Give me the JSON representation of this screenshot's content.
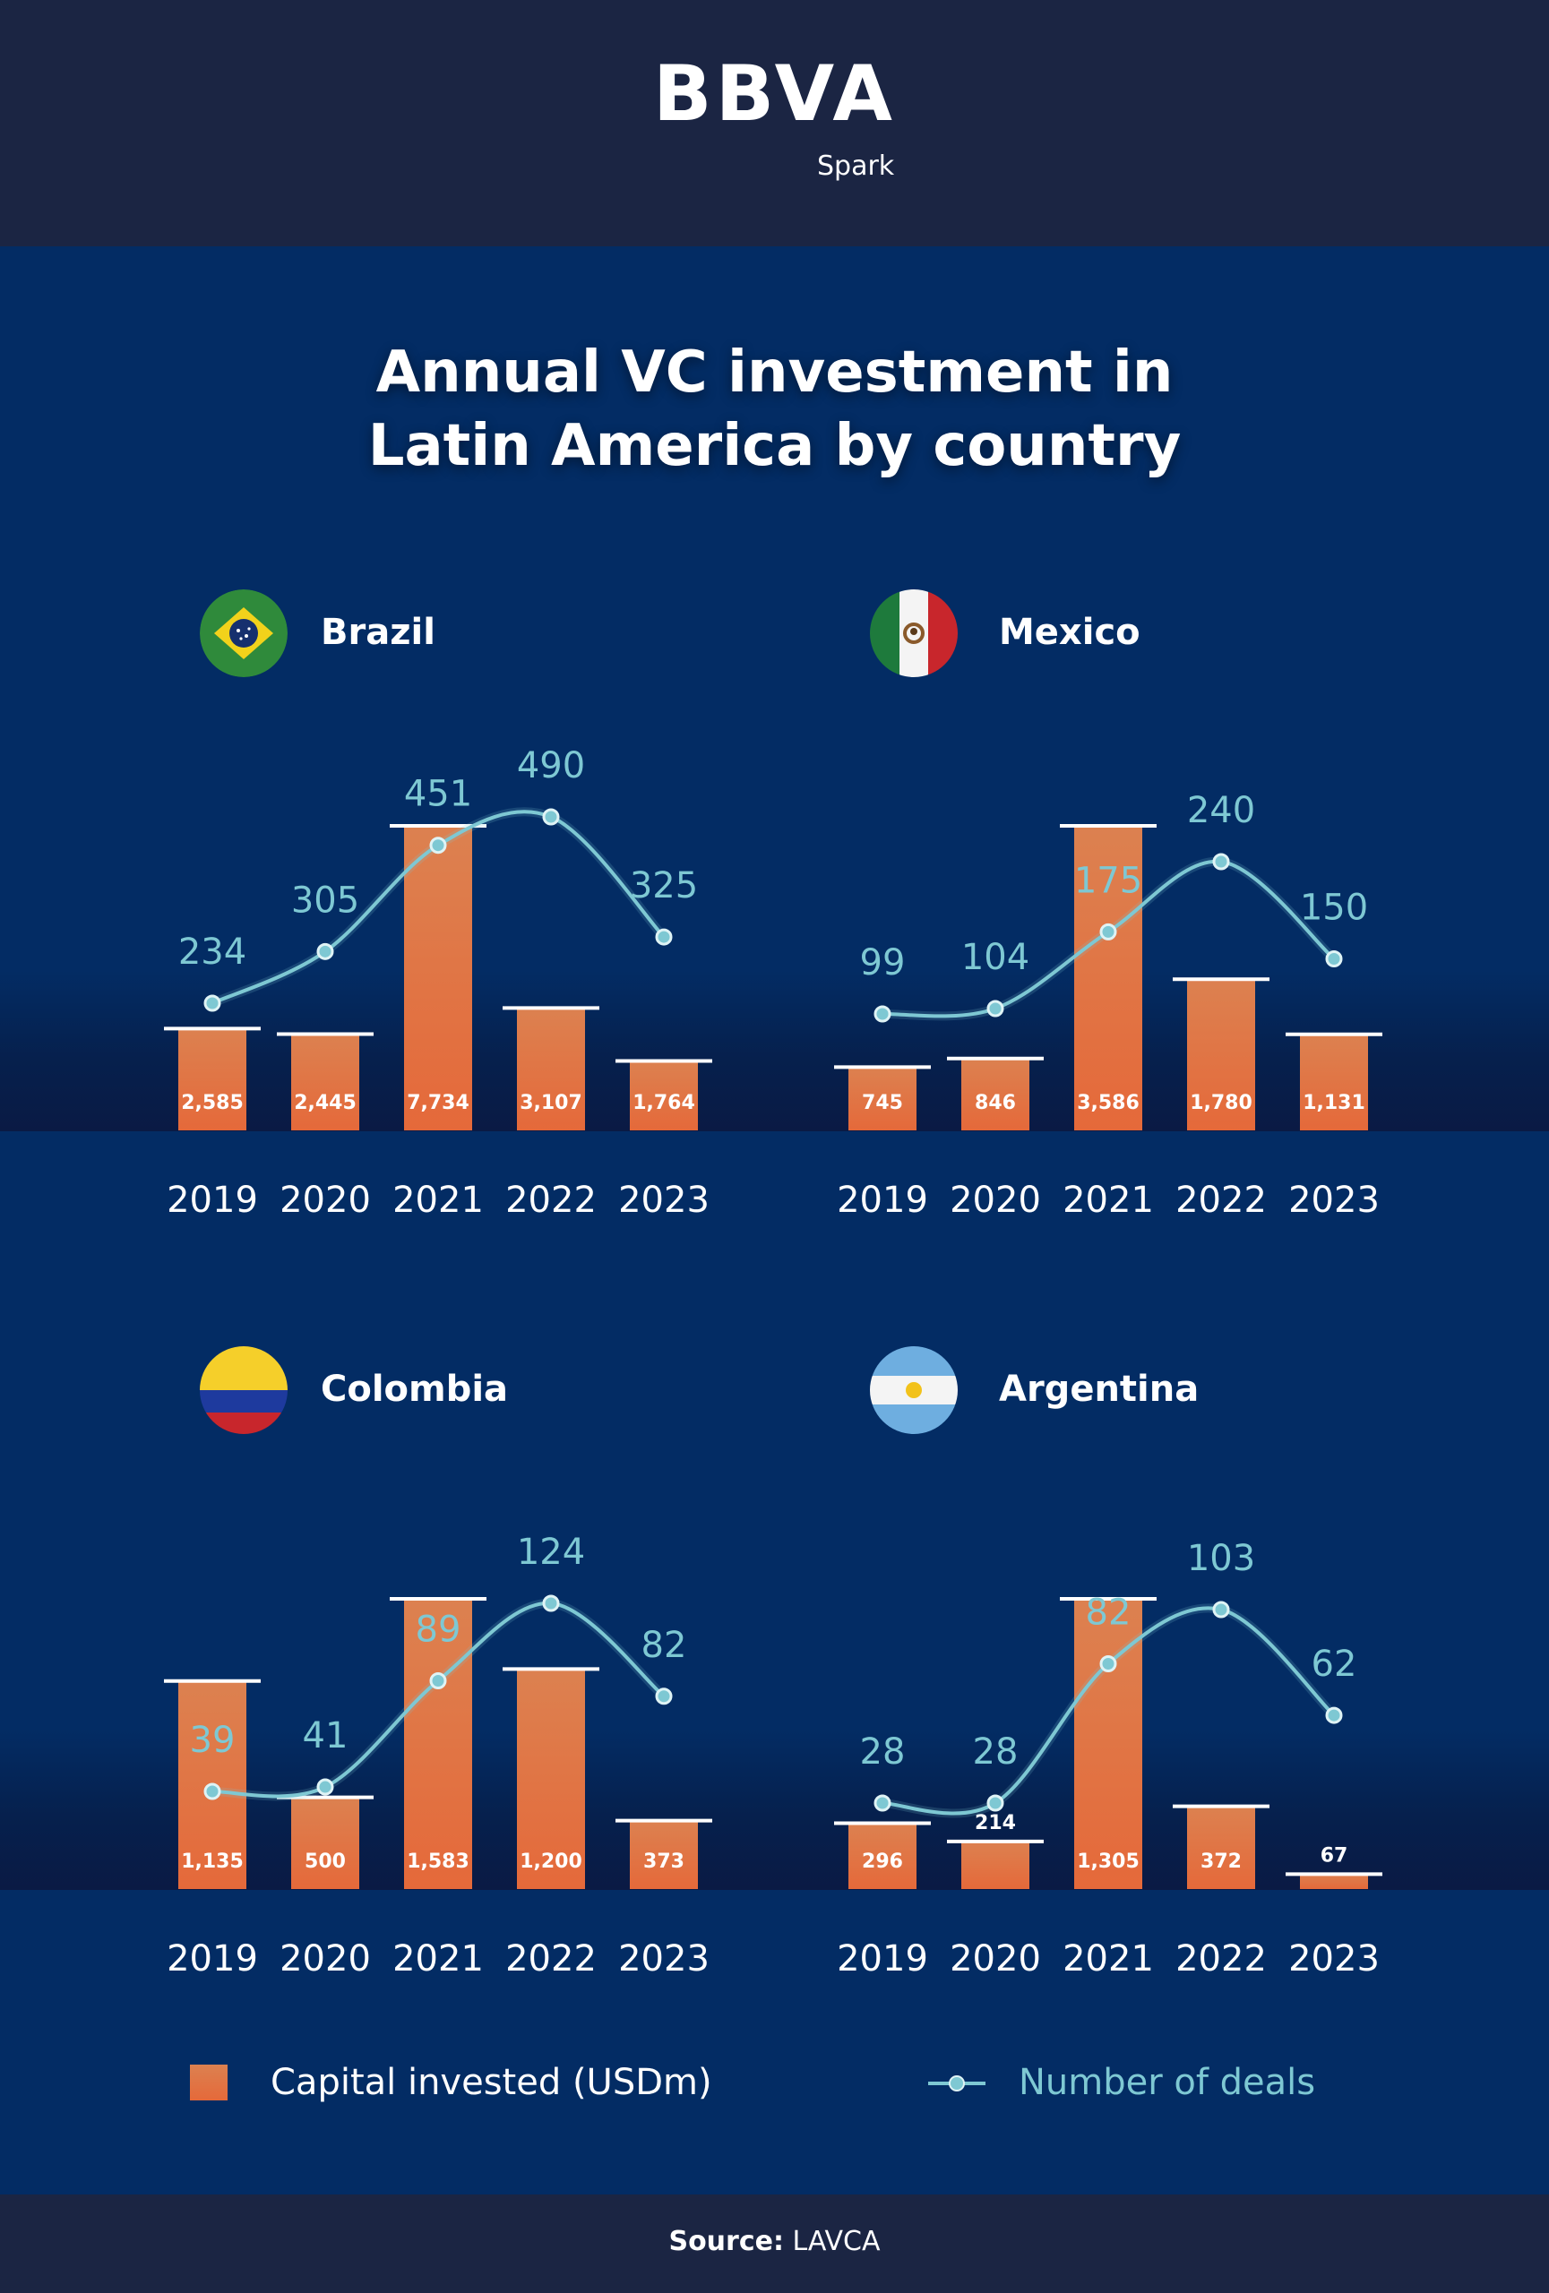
{
  "header": {
    "logo": "BBVA",
    "logo_sub": "Spark"
  },
  "title_lines": [
    "Annual VC investment in",
    "Latin America by country"
  ],
  "colors": {
    "bar_top": "#dc8150",
    "bar_bottom": "#e5693a",
    "line": "#7ec8d3",
    "background": "#032c64",
    "header": "#1b2543"
  },
  "legend": {
    "bars": "Capital invested (USDm)",
    "line": "Number of deals"
  },
  "source": {
    "label": "Source:",
    "value": "LAVCA"
  },
  "chart_data": [
    {
      "type": "bar",
      "title": "Brazil",
      "flag_icon": "brazil-flag-icon",
      "categories": [
        "2019",
        "2020",
        "2021",
        "2022",
        "2023"
      ],
      "series": [
        {
          "name": "Capital invested (USDm)",
          "type": "bar",
          "values": [
            2585,
            2445,
            7734,
            3107,
            1764
          ],
          "labels": [
            "2,585",
            "2,445",
            "7,734",
            "3,107",
            "1,764"
          ]
        },
        {
          "name": "Number of deals",
          "type": "line",
          "values": [
            234,
            305,
            451,
            490,
            325
          ],
          "labels": [
            "234",
            "305",
            "451",
            "490",
            "325"
          ]
        }
      ]
    },
    {
      "type": "bar",
      "title": "Mexico",
      "flag_icon": "mexico-flag-icon",
      "categories": [
        "2019",
        "2020",
        "2021",
        "2022",
        "2023"
      ],
      "series": [
        {
          "name": "Capital invested (USDm)",
          "type": "bar",
          "values": [
            745,
            846,
            3586,
            1780,
            1131
          ],
          "labels": [
            "745",
            "846",
            "3,586",
            "1,780",
            "1,131"
          ]
        },
        {
          "name": "Number of deals",
          "type": "line",
          "values": [
            99,
            104,
            175,
            240,
            150
          ],
          "labels": [
            "99",
            "104",
            "175",
            "240",
            "150"
          ]
        }
      ]
    },
    {
      "type": "bar",
      "title": "Colombia",
      "flag_icon": "colombia-flag-icon",
      "categories": [
        "2019",
        "2020",
        "2021",
        "2022",
        "2023"
      ],
      "series": [
        {
          "name": "Capital invested (USDm)",
          "type": "bar",
          "values": [
            1135,
            500,
            1583,
            1200,
            373
          ],
          "labels": [
            "1,135",
            "500",
            "1,583",
            "1,200",
            "373"
          ]
        },
        {
          "name": "Number of deals",
          "type": "line",
          "values": [
            39,
            41,
            89,
            124,
            82
          ],
          "labels": [
            "39",
            "41",
            "89",
            "124",
            "82"
          ]
        }
      ]
    },
    {
      "type": "bar",
      "title": "Argentina",
      "flag_icon": "argentina-flag-icon",
      "categories": [
        "2019",
        "2020",
        "2021",
        "2022",
        "2023"
      ],
      "series": [
        {
          "name": "Capital invested (USDm)",
          "type": "bar",
          "values": [
            296,
            214,
            1305,
            372,
            67
          ],
          "labels": [
            "296",
            "214",
            "1,305",
            "372",
            "67"
          ]
        },
        {
          "name": "Number of deals",
          "type": "line",
          "values": [
            28,
            28,
            82,
            103,
            62
          ],
          "labels": [
            "28",
            "28",
            "82",
            "103",
            "62"
          ]
        }
      ]
    }
  ]
}
